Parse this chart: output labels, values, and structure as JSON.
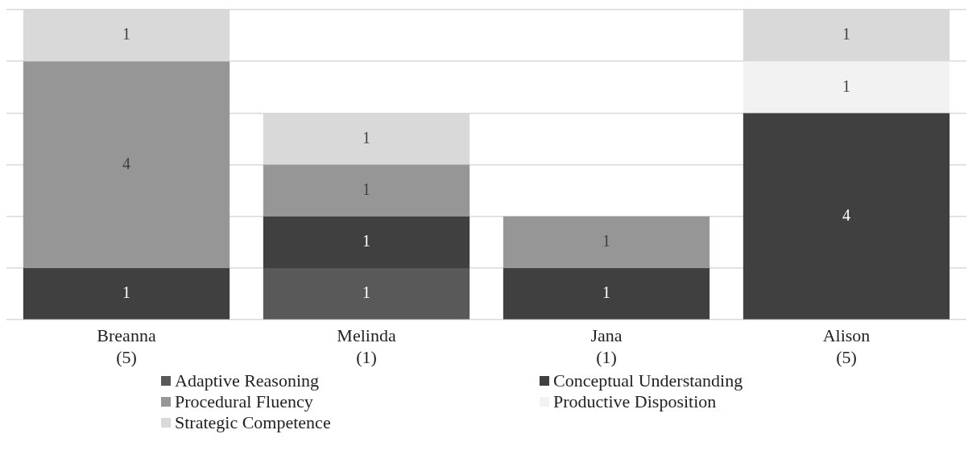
{
  "chart_data": {
    "type": "bar",
    "stacked": true,
    "categories": [
      "Breanna\n(5)",
      "Melinda\n(1)",
      "Jana\n(1)",
      "Alison\n(5)"
    ],
    "series": [
      {
        "name": "Adaptive Reasoning",
        "color": "#595959",
        "values": [
          null,
          1,
          null,
          null
        ]
      },
      {
        "name": "Conceptual Understanding",
        "color": "#404040",
        "values": [
          1,
          1,
          1,
          4
        ]
      },
      {
        "name": "Procedural Fluency",
        "color": "#969696",
        "values": [
          4,
          1,
          1,
          null
        ]
      },
      {
        "name": "Productive Disposition",
        "color": "#f2f2f2",
        "values": [
          null,
          null,
          null,
          1
        ]
      },
      {
        "name": "Strategic Competence",
        "color": "#d9d9d9",
        "values": [
          1,
          1,
          null,
          1
        ]
      }
    ],
    "ylim": [
      0,
      6
    ],
    "yticks": [
      {
        "value": 0,
        "label": null
      },
      {
        "value": 1,
        "label": null
      },
      {
        "value": 2,
        "label": null
      },
      {
        "value": 3,
        "label": null
      },
      {
        "value": 4,
        "label": null
      },
      {
        "value": 5,
        "label": null
      },
      {
        "value": 6,
        "label": null
      }
    ],
    "tick_labels": "x",
    "grid": "y",
    "legend": "bottom",
    "data_labels": true
  }
}
